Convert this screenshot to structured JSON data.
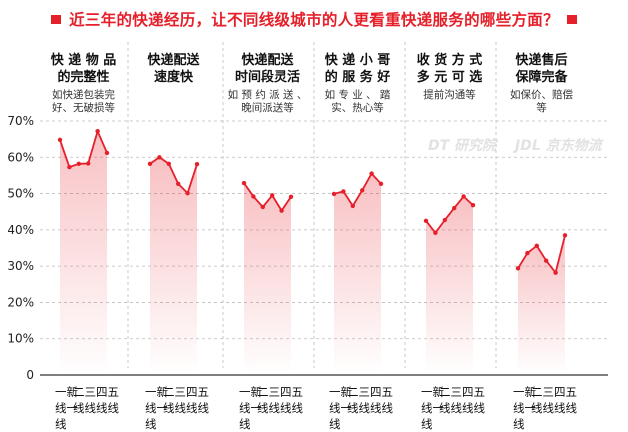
{
  "title": "近三年的快递经历，让不同线级城市的人更看重快递服务的哪些方面？",
  "accent_color": "#e6202a",
  "watermarks": [
    "DT 研究院",
    "JDL 京东物流"
  ],
  "x_tier_labels": [
    "一新\n线一\n线",
    "二\n线",
    "三\n线",
    "四\n线",
    "五\n线"
  ],
  "chart_data": {
    "type": "line",
    "ylim": [
      0,
      70
    ],
    "yticks": [
      "0",
      "10%",
      "20%",
      "30%",
      "40%",
      "50%",
      "60%",
      "70%"
    ],
    "tiers": [
      "一线",
      "新一线",
      "二线",
      "三线",
      "四线",
      "五线"
    ],
    "groups": [
      {
        "title": "快 递 物 品\n的完整性",
        "note": "如快递包装完\n好、无破损等",
        "values": [
          64.8,
          57.3,
          58.2,
          58.3,
          67.2,
          61.2
        ]
      },
      {
        "title": "快递配送\n速度快",
        "note": "",
        "values": [
          58.2,
          60.0,
          58.2,
          52.7,
          50.1,
          58.1
        ]
      },
      {
        "title": "快递配送\n时间段灵活",
        "note": "如 预 约 派 送 、\n晚间派送等",
        "values": [
          52.9,
          49.2,
          46.3,
          49.5,
          45.3,
          49.1
        ]
      },
      {
        "title": "快 递 小 哥\n的 服 务 好",
        "note": "如 专 业 、 踏\n实、热心等",
        "values": [
          49.9,
          50.6,
          46.6,
          50.9,
          55.5,
          52.7
        ]
      },
      {
        "title": "收 货 方 式\n多 元 可 选",
        "note": "提前沟通等",
        "values": [
          42.5,
          39.2,
          42.7,
          46.0,
          49.2,
          46.8
        ]
      },
      {
        "title": "快递售后\n保障完备",
        "note": "如保价、赔偿\n等",
        "values": [
          29.4,
          33.6,
          35.6,
          31.5,
          28.2,
          38.5
        ]
      }
    ]
  }
}
